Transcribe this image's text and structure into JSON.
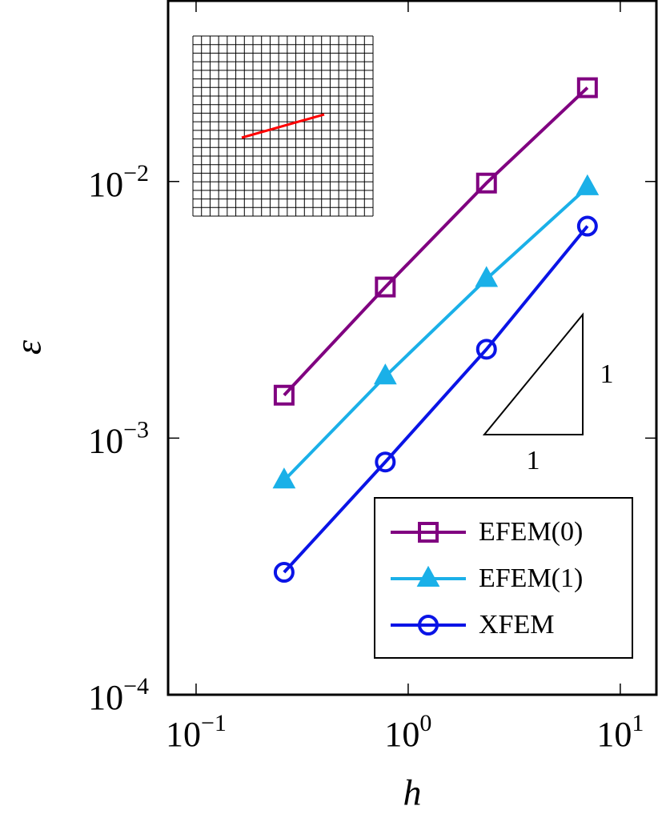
{
  "chart_data": {
    "type": "line",
    "xlabel": "h",
    "ylabel": "ε",
    "xscale": "log",
    "yscale": "log",
    "xlim": [
      0.0738,
      14.8
    ],
    "ylim": [
      0.0001,
      0.0506
    ],
    "xticks": [
      {
        "value": 0.1,
        "label": "10−1"
      },
      {
        "value": 1,
        "label": "100"
      },
      {
        "value": 10,
        "label": "101"
      }
    ],
    "yticks": [
      {
        "value": 0.0001,
        "label": "10−4"
      },
      {
        "value": 0.001,
        "label": "10−3"
      },
      {
        "value": 0.01,
        "label": "10−2"
      }
    ],
    "annotations": [
      "1",
      "1"
    ],
    "legend": "lower right",
    "series": [
      {
        "name": "EFEM(0)",
        "color": "#800080",
        "marker": "square",
        "x": [
          0.26,
          0.78,
          2.34,
          7.0
        ],
        "values": [
          0.00147,
          0.00388,
          0.00986,
          0.0232
        ]
      },
      {
        "name": "EFEM(1)",
        "color": "#1ab0e8",
        "marker": "triangle",
        "x": [
          0.26,
          0.78,
          2.34,
          7.0
        ],
        "values": [
          0.000684,
          0.00174,
          0.00417,
          0.0095
        ]
      },
      {
        "name": "XFEM",
        "color": "#0a14e6",
        "marker": "circle",
        "x": [
          0.26,
          0.78,
          2.34,
          7.0
        ],
        "values": [
          0.0003,
          0.000807,
          0.00222,
          0.0067
        ]
      }
    ]
  }
}
